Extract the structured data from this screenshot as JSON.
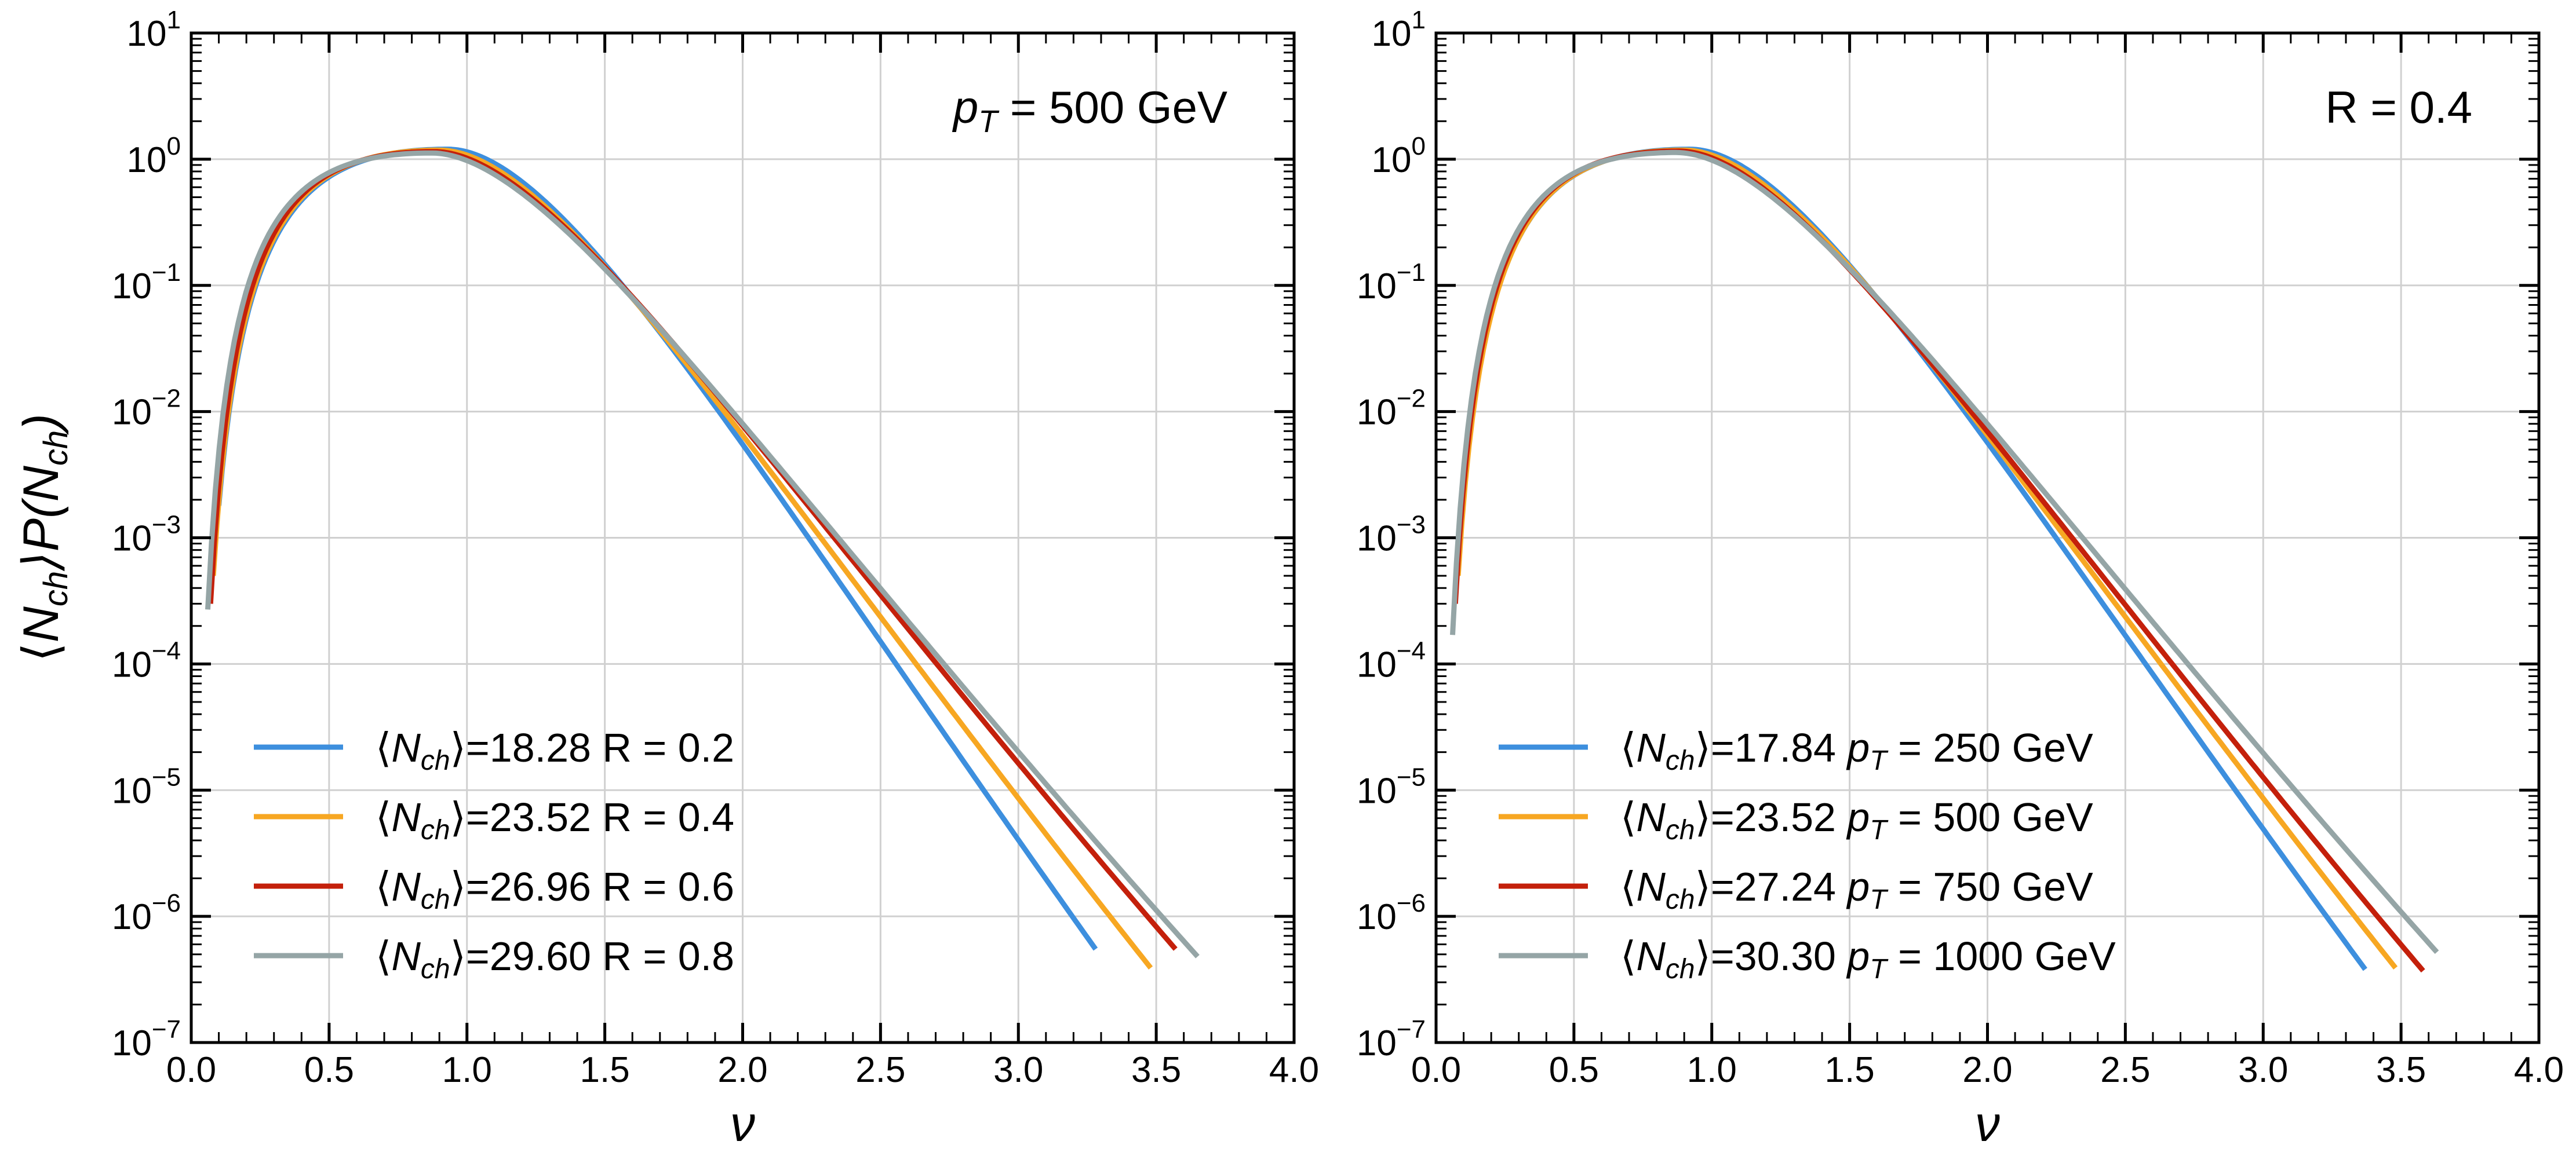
{
  "chart_data": [
    {
      "type": "line",
      "annotation": {
        "var": "p",
        "sub": "T",
        "rest": " = 500 GeV"
      },
      "xlabel": "ν",
      "ylabel": {
        "a": "⟨",
        "N": "N",
        "ch": "ch",
        "b": "⟩P(",
        "c": ")"
      },
      "xlim": [
        0.0,
        4.0
      ],
      "ylim_exp": [
        -7,
        1
      ],
      "yscale": "log",
      "xticks": [
        "0.0",
        "0.5",
        "1.0",
        "1.5",
        "2.0",
        "2.5",
        "3.0",
        "3.5",
        "4.0"
      ],
      "yticks": [
        {
          "base": "10",
          "exp": "−7"
        },
        {
          "base": "10",
          "exp": "−6"
        },
        {
          "base": "10",
          "exp": "−5"
        },
        {
          "base": "10",
          "exp": "−4"
        },
        {
          "base": "10",
          "exp": "−3"
        },
        {
          "base": "10",
          "exp": "−2"
        },
        {
          "base": "10",
          "exp": "−1"
        },
        {
          "base": "10",
          "exp": "0"
        },
        {
          "base": "10",
          "exp": "1"
        }
      ],
      "legend_position": "lower-left",
      "series": [
        {
          "name": "R = 0.2",
          "mean": "18.28",
          "var": "",
          "sub": "",
          "rest": "R = 0.2",
          "color": "#3d8fde",
          "nu_min": 0.1,
          "nu_max": 3.28,
          "y_start": 0.0018,
          "y_end": 5.5e-07,
          "peak_nu": 0.93,
          "peak_y": 1.2
        },
        {
          "name": "R = 0.4",
          "mean": "23.52",
          "var": "",
          "sub": "",
          "rest": "R = 0.4",
          "color": "#f7a722",
          "nu_min": 0.08,
          "nu_max": 3.48,
          "y_start": 0.0005,
          "y_end": 3.9e-07,
          "peak_nu": 0.9,
          "peak_y": 1.18
        },
        {
          "name": "R = 0.6",
          "mean": "26.96",
          "var": "",
          "sub": "",
          "rest": "R = 0.6",
          "color": "#c4200b",
          "nu_min": 0.07,
          "nu_max": 3.57,
          "y_start": 0.0003,
          "y_end": 5.5e-07,
          "peak_nu": 0.88,
          "peak_y": 1.15
        },
        {
          "name": "R = 0.8",
          "mean": "29.60",
          "var": "",
          "sub": "",
          "rest": "R = 0.8",
          "color": "#95a5a6",
          "nu_min": 0.06,
          "nu_max": 3.65,
          "y_start": 0.00027,
          "y_end": 4.8e-07,
          "peak_nu": 0.87,
          "peak_y": 1.12
        }
      ]
    },
    {
      "type": "line",
      "annotation": {
        "var": "",
        "sub": "",
        "rest": "R = 0.4"
      },
      "xlabel": "ν",
      "ylabel": null,
      "xlim": [
        0.0,
        4.0
      ],
      "ylim_exp": [
        -7,
        1
      ],
      "yscale": "log",
      "xticks": [
        "0.0",
        "0.5",
        "1.0",
        "1.5",
        "2.0",
        "2.5",
        "3.0",
        "3.5",
        "4.0"
      ],
      "yticks": [
        {
          "base": "10",
          "exp": "−7"
        },
        {
          "base": "10",
          "exp": "−6"
        },
        {
          "base": "10",
          "exp": "−5"
        },
        {
          "base": "10",
          "exp": "−4"
        },
        {
          "base": "10",
          "exp": "−3"
        },
        {
          "base": "10",
          "exp": "−2"
        },
        {
          "base": "10",
          "exp": "−1"
        },
        {
          "base": "10",
          "exp": "0"
        },
        {
          "base": "10",
          "exp": "1"
        }
      ],
      "legend_position": "lower-left",
      "series": [
        {
          "name": "pT = 250 GeV",
          "mean": "17.84",
          "var": "p",
          "sub": "T",
          "rest": " = 250 GeV",
          "color": "#3d8fde",
          "nu_min": 0.1,
          "nu_max": 3.37,
          "y_start": 0.0021,
          "y_end": 3.8e-07,
          "peak_nu": 0.92,
          "peak_y": 1.2
        },
        {
          "name": "pT = 500 GeV",
          "mean": "23.52",
          "var": "p",
          "sub": "T",
          "rest": " = 500 GeV",
          "color": "#f7a722",
          "nu_min": 0.08,
          "nu_max": 3.48,
          "y_start": 0.0005,
          "y_end": 3.9e-07,
          "peak_nu": 0.9,
          "peak_y": 1.18
        },
        {
          "name": "pT = 750 GeV",
          "mean": "27.24",
          "var": "p",
          "sub": "T",
          "rest": " = 750 GeV",
          "color": "#c4200b",
          "nu_min": 0.07,
          "nu_max": 3.58,
          "y_start": 0.0003,
          "y_end": 3.7e-07,
          "peak_nu": 0.88,
          "peak_y": 1.16
        },
        {
          "name": "pT = 1000 GeV",
          "mean": "30.30",
          "var": "p",
          "sub": "T",
          "rest": " = 1000 GeV",
          "color": "#95a5a6",
          "nu_min": 0.06,
          "nu_max": 3.63,
          "y_start": 0.00017,
          "y_end": 5.2e-07,
          "peak_nu": 0.87,
          "peak_y": 1.13
        }
      ]
    }
  ]
}
